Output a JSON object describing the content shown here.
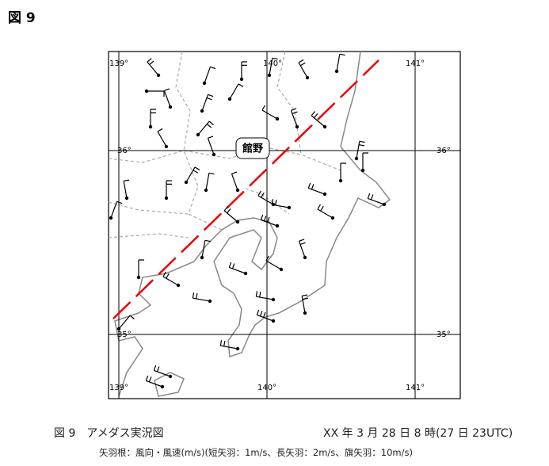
{
  "header": {
    "title": "図 9"
  },
  "map": {
    "lon_labels": [
      "139°",
      "140°",
      "141°"
    ],
    "lat_labels": [
      "36°",
      "35°"
    ],
    "station": "館野"
  },
  "caption": {
    "label": "図 9　アメダス実況図",
    "time": "XX 年 3 月 28 日 8 時(27 日 23UTC)",
    "note": "矢羽根：風向・風速(m/s)(短矢羽：1m/s、長矢羽：2m/s、旗矢羽：10m/s)"
  }
}
